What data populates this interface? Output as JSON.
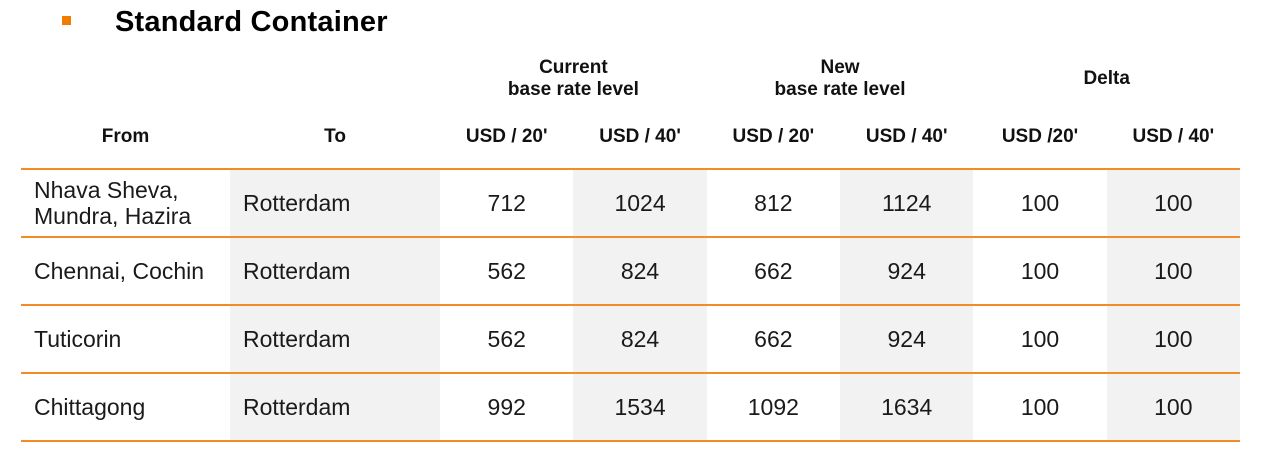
{
  "title": "Standard Container",
  "colors": {
    "accent": "#f07d00",
    "rule": "#f28c28",
    "shade": "#f2f2f2"
  },
  "table": {
    "groups": {
      "current": "Current\nbase rate level",
      "new": "New\nbase rate level",
      "delta": "Delta"
    },
    "headers": {
      "from": "From",
      "to": "To",
      "units": [
        "USD / 20'",
        "USD / 40'",
        "USD / 20'",
        "USD / 40'",
        "USD /20'",
        "USD / 40'"
      ]
    },
    "rows": [
      {
        "from": "Nhava Sheva,\nMundra, Hazira",
        "to": "Rotterdam",
        "values": [
          "712",
          "1024",
          "812",
          "1124",
          "100",
          "100"
        ]
      },
      {
        "from": "Chennai, Cochin",
        "to": "Rotterdam",
        "values": [
          "562",
          "824",
          "662",
          "924",
          "100",
          "100"
        ]
      },
      {
        "from": "Tuticorin",
        "to": "Rotterdam",
        "values": [
          "562",
          "824",
          "662",
          "924",
          "100",
          "100"
        ]
      },
      {
        "from": "Chittagong",
        "to": "Rotterdam",
        "values": [
          "992",
          "1534",
          "1092",
          "1634",
          "100",
          "100"
        ]
      }
    ]
  }
}
